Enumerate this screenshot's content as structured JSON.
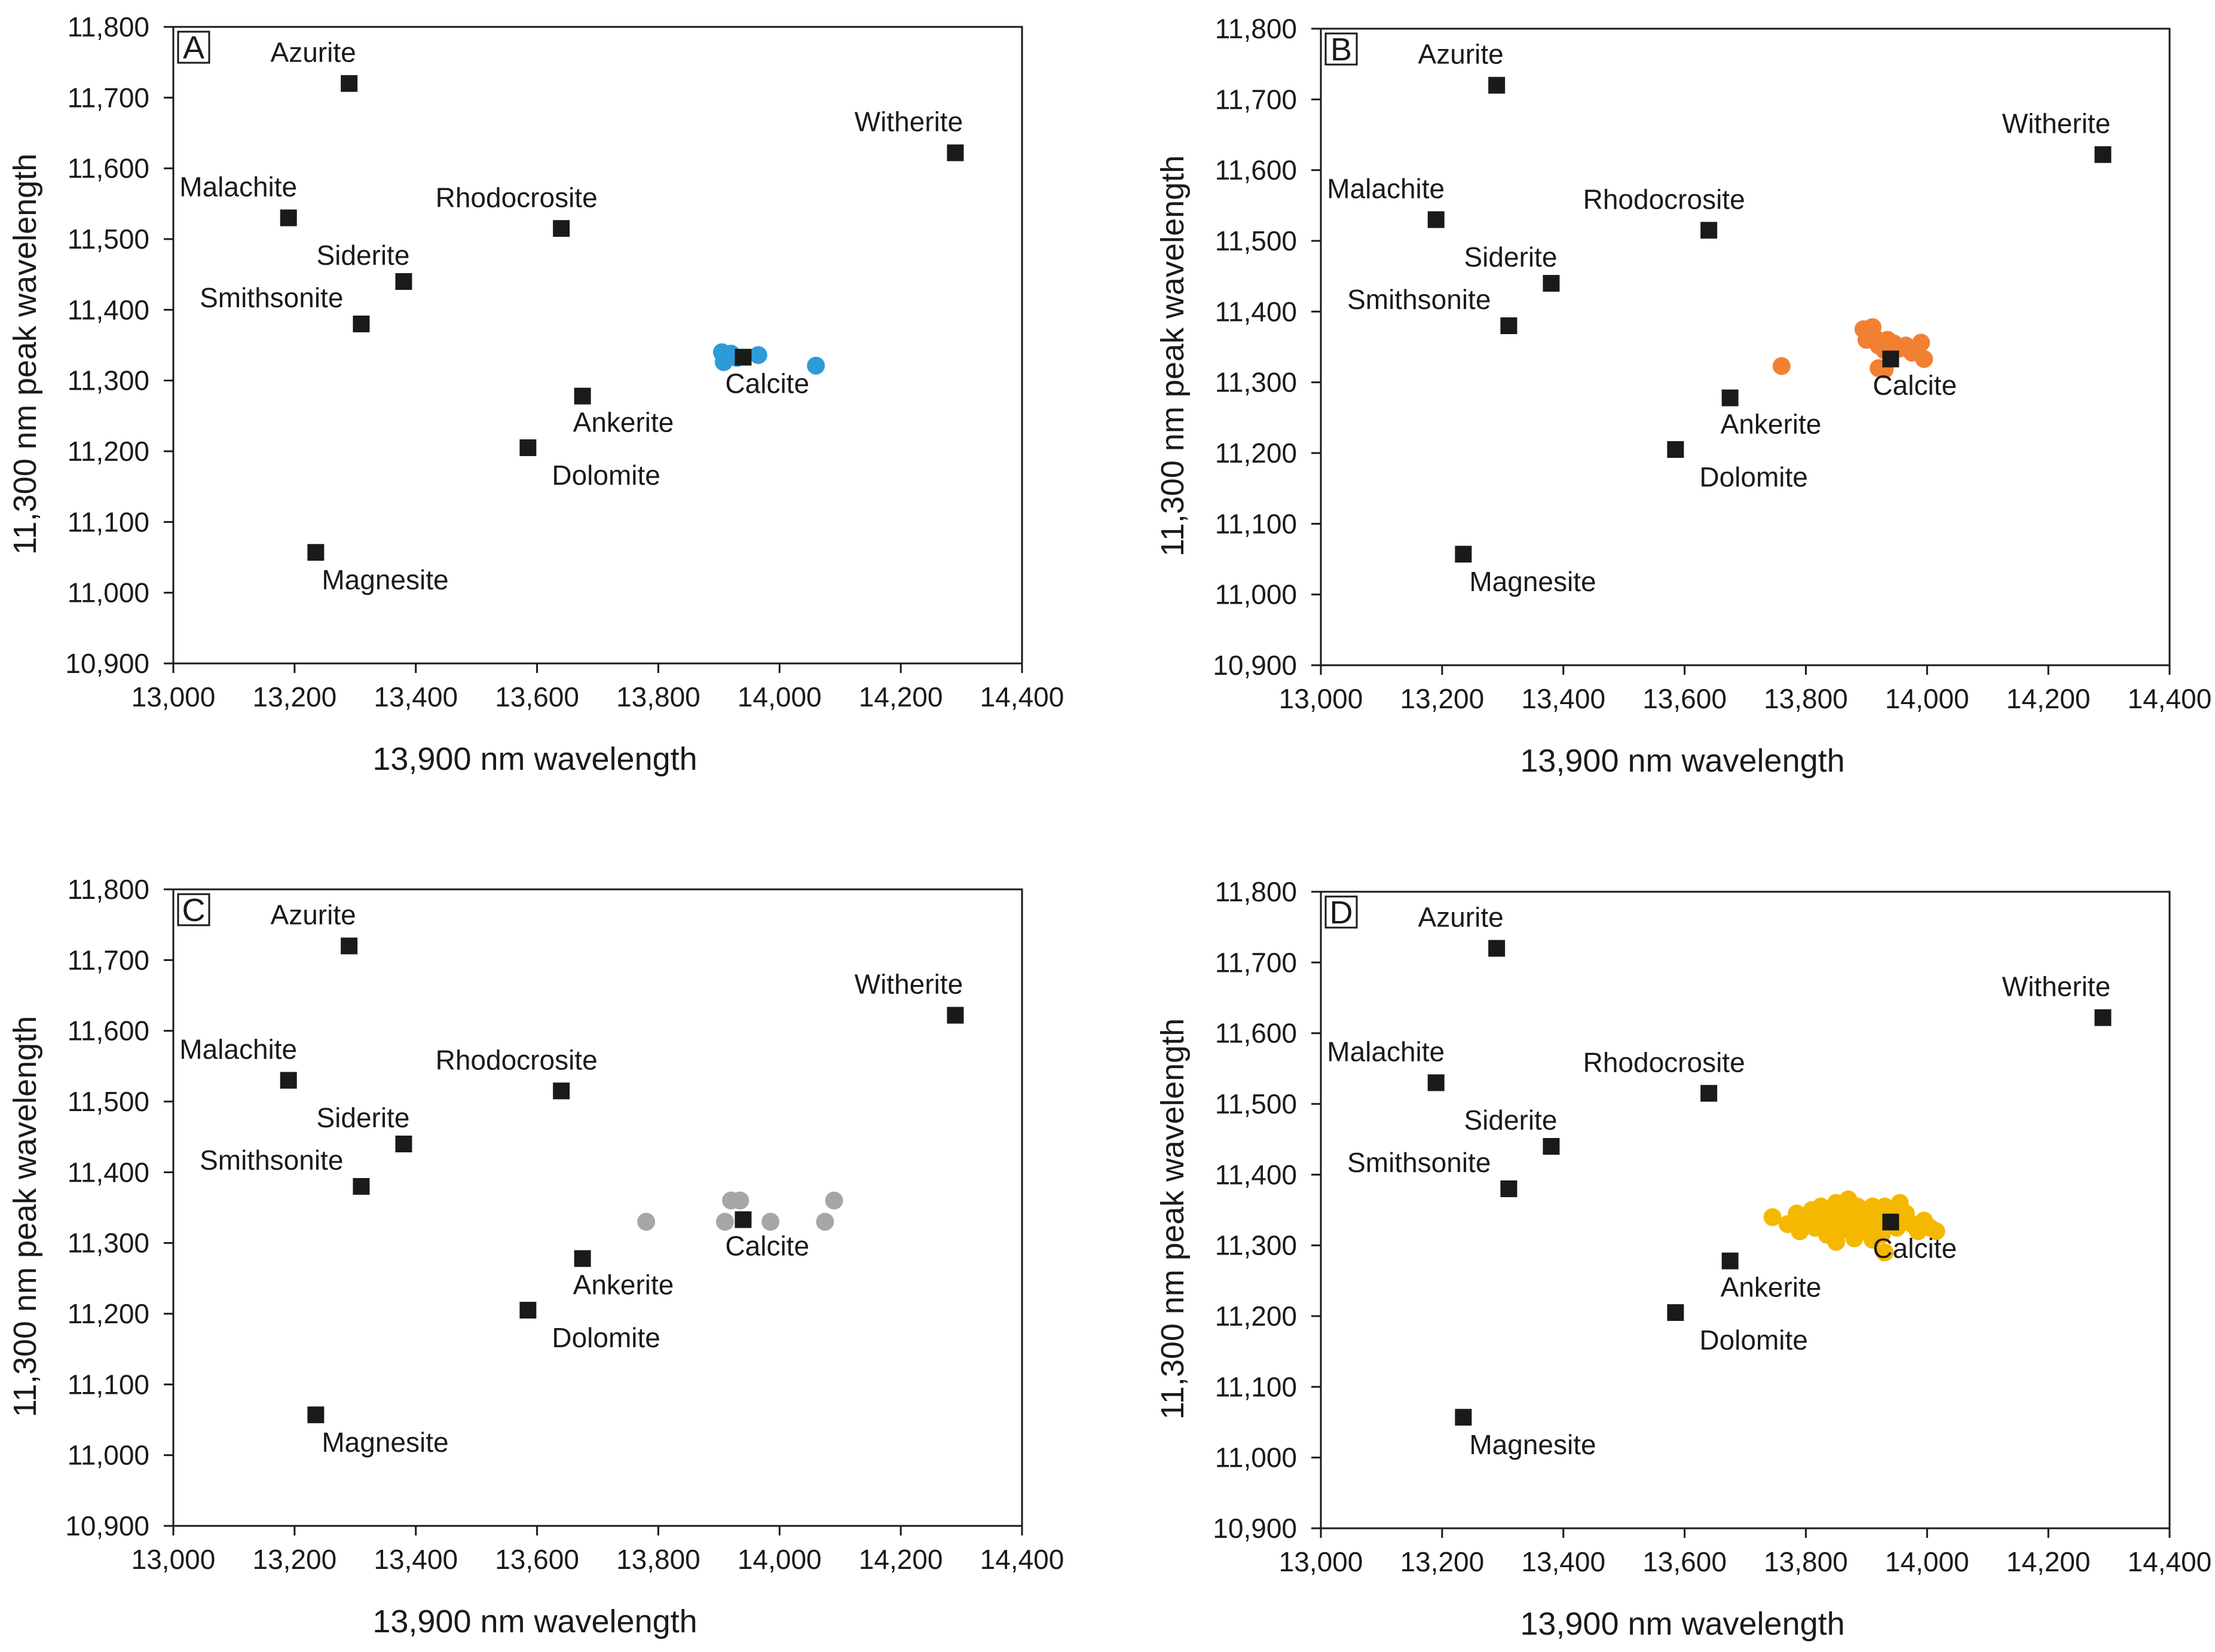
{
  "chart_data": [
    {
      "type": "scatter",
      "panel_label": "A",
      "xlabel": "13,900 nm wavelength",
      "ylabel": "11,300 nm peak wavelength",
      "xlim": [
        13000,
        14400
      ],
      "ylim": [
        10900,
        11800
      ],
      "x_ticks": [
        13000,
        13200,
        13400,
        13600,
        13800,
        14000,
        14200,
        14400
      ],
      "x_tick_labels": [
        "13,000",
        "13,200",
        "13,400",
        "13,600",
        "13,800",
        "14,000",
        "14,200",
        "14,400"
      ],
      "y_ticks": [
        10900,
        11000,
        11100,
        11200,
        11300,
        11400,
        11500,
        11600,
        11700,
        11800
      ],
      "y_tick_labels": [
        "10,900",
        "11,000",
        "11,100",
        "11,200",
        "11,300",
        "11,400",
        "11,500",
        "11,600",
        "11,700",
        "11,800"
      ],
      "references": [
        {
          "name": "Azurite",
          "x": 13290,
          "y": 11720,
          "label_pos": "above"
        },
        {
          "name": "Malachite",
          "x": 13190,
          "y": 11530,
          "label_pos": "above"
        },
        {
          "name": "Siderite",
          "x": 13380,
          "y": 11440,
          "label_pos": "above-left"
        },
        {
          "name": "Smithsonite",
          "x": 13310,
          "y": 11380,
          "label_pos": "above-left"
        },
        {
          "name": "Rhodocrosite",
          "x": 13640,
          "y": 11515,
          "label_pos": "above"
        },
        {
          "name": "Witherite",
          "x": 14290,
          "y": 11622,
          "label_pos": "above"
        },
        {
          "name": "Calcite",
          "x": 13940,
          "y": 11333,
          "label_pos": "below-right"
        },
        {
          "name": "Ankerite",
          "x": 13675,
          "y": 11278,
          "label_pos": "below-right"
        },
        {
          "name": "Dolomite",
          "x": 13585,
          "y": 11205,
          "label_pos": "below-right"
        },
        {
          "name": "Magnesite",
          "x": 13235,
          "y": 11057,
          "label_pos": "below-right"
        }
      ],
      "samples": {
        "color": "#2e9bd9",
        "points": [
          [
            13905,
            11340
          ],
          [
            13910,
            11330
          ],
          [
            13915,
            11336
          ],
          [
            13908,
            11326
          ],
          [
            13920,
            11338
          ],
          [
            13930,
            11332
          ],
          [
            13965,
            11336
          ],
          [
            14060,
            11321
          ]
        ]
      }
    },
    {
      "type": "scatter",
      "panel_label": "B",
      "xlabel": "13,900 nm wavelength",
      "ylabel": "11,300 nm peak wavelength",
      "xlim": [
        13000,
        14400
      ],
      "ylim": [
        10900,
        11800
      ],
      "x_ticks": [
        13000,
        13200,
        13400,
        13600,
        13800,
        14000,
        14200,
        14400
      ],
      "x_tick_labels": [
        "13,000",
        "13,200",
        "13,400",
        "13,600",
        "13,800",
        "14,000",
        "14,200",
        "14,400"
      ],
      "y_ticks": [
        10900,
        11000,
        11100,
        11200,
        11300,
        11400,
        11500,
        11600,
        11700,
        11800
      ],
      "y_tick_labels": [
        "10,900",
        "11,000",
        "11,100",
        "11,200",
        "11,300",
        "11,400",
        "11,500",
        "11,600",
        "11,700",
        "11,800"
      ],
      "references": [
        {
          "name": "Azurite",
          "x": 13290,
          "y": 11720,
          "label_pos": "above"
        },
        {
          "name": "Malachite",
          "x": 13190,
          "y": 11530,
          "label_pos": "above"
        },
        {
          "name": "Siderite",
          "x": 13380,
          "y": 11440,
          "label_pos": "above-left"
        },
        {
          "name": "Smithsonite",
          "x": 13310,
          "y": 11380,
          "label_pos": "above-left"
        },
        {
          "name": "Rhodocrosite",
          "x": 13640,
          "y": 11515,
          "label_pos": "above"
        },
        {
          "name": "Witherite",
          "x": 14290,
          "y": 11622,
          "label_pos": "above"
        },
        {
          "name": "Calcite",
          "x": 13940,
          "y": 11333,
          "label_pos": "below-right"
        },
        {
          "name": "Ankerite",
          "x": 13675,
          "y": 11278,
          "label_pos": "below-right"
        },
        {
          "name": "Dolomite",
          "x": 13585,
          "y": 11205,
          "label_pos": "below-right"
        },
        {
          "name": "Magnesite",
          "x": 13235,
          "y": 11057,
          "label_pos": "below-right"
        }
      ],
      "samples": {
        "color": "#f28033",
        "points": [
          [
            13760,
            11323
          ],
          [
            13895,
            11375
          ],
          [
            13900,
            11360
          ],
          [
            13905,
            11370
          ],
          [
            13910,
            11378
          ],
          [
            13915,
            11362
          ],
          [
            13920,
            11352
          ],
          [
            13930,
            11345
          ],
          [
            13935,
            11360
          ],
          [
            13945,
            11355
          ],
          [
            13955,
            11348
          ],
          [
            13965,
            11352
          ],
          [
            13975,
            11342
          ],
          [
            13990,
            11356
          ],
          [
            13995,
            11333
          ],
          [
            13920,
            11320
          ],
          [
            13930,
            11318
          ]
        ]
      }
    },
    {
      "type": "scatter",
      "panel_label": "C",
      "xlabel": "13,900 nm wavelength",
      "ylabel": "11,300 nm peak wavelength",
      "xlim": [
        13000,
        14400
      ],
      "ylim": [
        10900,
        11800
      ],
      "x_ticks": [
        13000,
        13200,
        13400,
        13600,
        13800,
        14000,
        14200,
        14400
      ],
      "x_tick_labels": [
        "13,000",
        "13,200",
        "13,400",
        "13,600",
        "13,800",
        "14,000",
        "14,200",
        "14,400"
      ],
      "y_ticks": [
        10900,
        11000,
        11100,
        11200,
        11300,
        11400,
        11500,
        11600,
        11700,
        11800
      ],
      "y_tick_labels": [
        "10,900",
        "11,000",
        "11,100",
        "11,200",
        "11,300",
        "11,400",
        "11,500",
        "11,600",
        "11,700",
        "11,800"
      ],
      "references": [
        {
          "name": "Azurite",
          "x": 13290,
          "y": 11720,
          "label_pos": "above"
        },
        {
          "name": "Malachite",
          "x": 13190,
          "y": 11530,
          "label_pos": "above"
        },
        {
          "name": "Siderite",
          "x": 13380,
          "y": 11440,
          "label_pos": "above-left"
        },
        {
          "name": "Smithsonite",
          "x": 13310,
          "y": 11380,
          "label_pos": "above-left"
        },
        {
          "name": "Rhodocrosite",
          "x": 13640,
          "y": 11515,
          "label_pos": "above"
        },
        {
          "name": "Witherite",
          "x": 14290,
          "y": 11622,
          "label_pos": "above"
        },
        {
          "name": "Calcite",
          "x": 13940,
          "y": 11333,
          "label_pos": "below-right"
        },
        {
          "name": "Ankerite",
          "x": 13675,
          "y": 11278,
          "label_pos": "below-right"
        },
        {
          "name": "Dolomite",
          "x": 13585,
          "y": 11205,
          "label_pos": "below-right"
        },
        {
          "name": "Magnesite",
          "x": 13235,
          "y": 11057,
          "label_pos": "below-right"
        }
      ],
      "samples": {
        "color": "#a6a6a6",
        "points": [
          [
            13780,
            11330
          ],
          [
            13910,
            11330
          ],
          [
            13920,
            11360
          ],
          [
            13935,
            11360
          ],
          [
            13985,
            11330
          ],
          [
            14075,
            11330
          ],
          [
            14090,
            11360
          ]
        ]
      }
    },
    {
      "type": "scatter",
      "panel_label": "D",
      "xlabel": "13,900 nm wavelength",
      "ylabel": "11,300 nm peak wavelength",
      "xlim": [
        13000,
        14400
      ],
      "ylim": [
        10900,
        11800
      ],
      "x_ticks": [
        13000,
        13200,
        13400,
        13600,
        13800,
        14000,
        14200,
        14400
      ],
      "x_tick_labels": [
        "13,000",
        "13,200",
        "13,400",
        "13,600",
        "13,800",
        "14,000",
        "14,200",
        "14,400"
      ],
      "y_ticks": [
        10900,
        11000,
        11100,
        11200,
        11300,
        11400,
        11500,
        11600,
        11700,
        11800
      ],
      "y_tick_labels": [
        "10,900",
        "11,000",
        "11,100",
        "11,200",
        "11,300",
        "11,400",
        "11,500",
        "11,600",
        "11,700",
        "11,800"
      ],
      "references": [
        {
          "name": "Azurite",
          "x": 13290,
          "y": 11720,
          "label_pos": "above"
        },
        {
          "name": "Malachite",
          "x": 13190,
          "y": 11530,
          "label_pos": "above"
        },
        {
          "name": "Siderite",
          "x": 13380,
          "y": 11440,
          "label_pos": "above-left"
        },
        {
          "name": "Smithsonite",
          "x": 13310,
          "y": 11380,
          "label_pos": "above-left"
        },
        {
          "name": "Rhodocrosite",
          "x": 13640,
          "y": 11515,
          "label_pos": "above"
        },
        {
          "name": "Witherite",
          "x": 14290,
          "y": 11622,
          "label_pos": "above"
        },
        {
          "name": "Calcite",
          "x": 13940,
          "y": 11333,
          "label_pos": "below-right"
        },
        {
          "name": "Ankerite",
          "x": 13675,
          "y": 11278,
          "label_pos": "below-right"
        },
        {
          "name": "Dolomite",
          "x": 13585,
          "y": 11205,
          "label_pos": "below-right"
        },
        {
          "name": "Magnesite",
          "x": 13235,
          "y": 11057,
          "label_pos": "below-right"
        }
      ],
      "samples": {
        "color": "#f5b800",
        "points": [
          [
            13745,
            11340
          ],
          [
            13770,
            11330
          ],
          [
            13785,
            11345
          ],
          [
            13790,
            11320
          ],
          [
            13800,
            11335
          ],
          [
            13810,
            11350
          ],
          [
            13815,
            11325
          ],
          [
            13820,
            11340
          ],
          [
            13825,
            11355
          ],
          [
            13830,
            11330
          ],
          [
            13835,
            11315
          ],
          [
            13840,
            11345
          ],
          [
            13845,
            11335
          ],
          [
            13850,
            11360
          ],
          [
            13855,
            11320
          ],
          [
            13860,
            11350
          ],
          [
            13865,
            11340
          ],
          [
            13870,
            11365
          ],
          [
            13875,
            11325
          ],
          [
            13880,
            11345
          ],
          [
            13885,
            11355
          ],
          [
            13890,
            11335
          ],
          [
            13895,
            11320
          ],
          [
            13900,
            11350
          ],
          [
            13905,
            11340
          ],
          [
            13910,
            11355
          ],
          [
            13915,
            11330
          ],
          [
            13920,
            11345
          ],
          [
            13925,
            11315
          ],
          [
            13930,
            11355
          ],
          [
            13935,
            11340
          ],
          [
            13945,
            11350
          ],
          [
            13950,
            11325
          ],
          [
            13955,
            11360
          ],
          [
            13960,
            11335
          ],
          [
            13965,
            11345
          ],
          [
            13975,
            11330
          ],
          [
            13985,
            11320
          ],
          [
            13995,
            11335
          ],
          [
            14005,
            11325
          ],
          [
            14015,
            11320
          ],
          [
            13930,
            11290
          ],
          [
            13850,
            11305
          ],
          [
            13880,
            11310
          ],
          [
            13910,
            11308
          ]
        ]
      }
    }
  ]
}
